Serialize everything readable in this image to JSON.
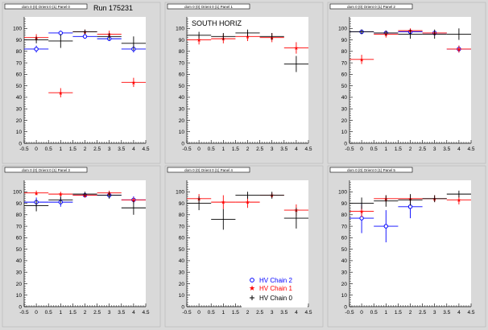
{
  "colors": {
    "series0": "#0000ff",
    "series1": "#ff0000",
    "series2": "#000000",
    "frame": "#d9d9d9",
    "plot": "#ffffff"
  },
  "run_label": "Run 175231",
  "legend": [
    "HV Chain 2",
    "HV Chain 1",
    "HV Chain 0"
  ],
  "chart_data": [
    {
      "type": "scatter",
      "title": "dom 0 (0) Orient 0 (1) Panel 0",
      "annotation": "Run 175231",
      "xlim": [
        -0.5,
        4.5
      ],
      "ylim": [
        0,
        110
      ],
      "xticks": [
        -0.5,
        0,
        0.5,
        1,
        1.5,
        2,
        2.5,
        3,
        3.5,
        4,
        4.5
      ],
      "yticks": [
        0,
        10,
        20,
        30,
        40,
        50,
        60,
        70,
        80,
        90,
        100
      ],
      "series": [
        {
          "color": "#0000ff",
          "marker": "circle",
          "points": [
            {
              "x": 0,
              "y": 82,
              "ex": 0.5,
              "ey": 3
            },
            {
              "x": 1,
              "y": 96,
              "ex": 0.5,
              "ey": 2
            },
            {
              "x": 2,
              "y": 93,
              "ex": 0.5,
              "ey": 2
            },
            {
              "x": 3,
              "y": 91,
              "ex": 0.5,
              "ey": 2
            },
            {
              "x": 4,
              "y": 82,
              "ex": 0.5,
              "ey": 3
            }
          ]
        },
        {
          "color": "#ff0000",
          "marker": "star",
          "points": [
            {
              "x": 0,
              "y": 92,
              "ex": 0.5,
              "ey": 3
            },
            {
              "x": 1,
              "y": 44,
              "ex": 0.5,
              "ey": 4
            },
            {
              "x": 2,
              "y": 97,
              "ex": 0.5,
              "ey": 2
            },
            {
              "x": 3,
              "y": 95,
              "ex": 0.5,
              "ey": 3
            },
            {
              "x": 4,
              "y": 53,
              "ex": 0.5,
              "ey": 4
            }
          ]
        },
        {
          "color": "#000000",
          "marker": "cross",
          "points": [
            {
              "x": 0,
              "y": 90,
              "ex": 0.5,
              "ey": 3
            },
            {
              "x": 1,
              "y": 89,
              "ex": 0.5,
              "ey": 6
            },
            {
              "x": 2,
              "y": 97,
              "ex": 0.5,
              "ey": 2
            },
            {
              "x": 3,
              "y": 93,
              "ex": 0.5,
              "ey": 3
            },
            {
              "x": 4,
              "y": 87,
              "ex": 0.5,
              "ey": 6
            }
          ]
        }
      ]
    },
    {
      "type": "scatter",
      "title": "dom 0 (0) Orient 0 (1) Panel 1",
      "annotation": "SOUTH HORIZ",
      "xlim": [
        -0.5,
        4.5
      ],
      "ylim": [
        0,
        110
      ],
      "xticks": [
        -0.5,
        0,
        0.5,
        1,
        1.5,
        2,
        2.5,
        3,
        3.5,
        4,
        4.5
      ],
      "yticks": [
        0,
        10,
        20,
        30,
        40,
        50,
        60,
        70,
        80,
        90,
        100
      ],
      "series": [
        {
          "color": "#ff0000",
          "marker": "star",
          "points": [
            {
              "x": 0,
              "y": 90,
              "ex": 0.5,
              "ey": 4
            },
            {
              "x": 1,
              "y": 91,
              "ex": 0.5,
              "ey": 4
            },
            {
              "x": 2,
              "y": 93,
              "ex": 0.5,
              "ey": 4
            },
            {
              "x": 3,
              "y": 92,
              "ex": 0.5,
              "ey": 4
            },
            {
              "x": 4,
              "y": 83,
              "ex": 0.5,
              "ey": 5
            }
          ]
        },
        {
          "color": "#000000",
          "marker": "cross",
          "points": [
            {
              "x": 0,
              "y": 94,
              "ex": 0.5,
              "ey": 3
            },
            {
              "x": 1,
              "y": 93,
              "ex": 0.5,
              "ey": 3
            },
            {
              "x": 2,
              "y": 96,
              "ex": 0.5,
              "ey": 3
            },
            {
              "x": 3,
              "y": 93,
              "ex": 0.5,
              "ey": 3
            },
            {
              "x": 4,
              "y": 69,
              "ex": 0.5,
              "ey": 7
            }
          ]
        }
      ]
    },
    {
      "type": "scatter",
      "title": "dom 0 (0) Orient 0 (1) Panel 2",
      "annotation": "",
      "xlim": [
        -0.5,
        4.5
      ],
      "ylim": [
        0,
        110
      ],
      "xticks": [
        -0.5,
        0,
        0.5,
        1,
        1.5,
        2,
        2.5,
        3,
        3.5,
        4,
        4.5
      ],
      "yticks": [
        0,
        10,
        20,
        30,
        40,
        50,
        60,
        70,
        80,
        90,
        100
      ],
      "series": [
        {
          "color": "#0000ff",
          "marker": "circle",
          "points": [
            {
              "x": 0,
              "y": 97,
              "ex": 0.5,
              "ey": 2
            },
            {
              "x": 1,
              "y": 96,
              "ex": 0.5,
              "ey": 2
            },
            {
              "x": 2,
              "y": 97,
              "ex": 0.5,
              "ey": 2
            },
            {
              "x": 3,
              "y": 96,
              "ex": 0.5,
              "ey": 2
            },
            {
              "x": 4,
              "y": 82,
              "ex": 0.5,
              "ey": 3
            }
          ]
        },
        {
          "color": "#ff0000",
          "marker": "star",
          "points": [
            {
              "x": 0,
              "y": 73,
              "ex": 0.5,
              "ey": 4
            },
            {
              "x": 1,
              "y": 95,
              "ex": 0.5,
              "ey": 3
            },
            {
              "x": 2,
              "y": 98,
              "ex": 0.5,
              "ey": 2
            },
            {
              "x": 3,
              "y": 96,
              "ex": 0.5,
              "ey": 2
            },
            {
              "x": 4,
              "y": 82,
              "ex": 0.5,
              "ey": 3
            }
          ]
        },
        {
          "color": "#000000",
          "marker": "cross",
          "points": [
            {
              "x": 0,
              "y": 97,
              "ex": 0.5,
              "ey": 2
            },
            {
              "x": 1,
              "y": 96,
              "ex": 0.5,
              "ey": 2
            },
            {
              "x": 2,
              "y": 95,
              "ex": 0.5,
              "ey": 4
            },
            {
              "x": 3,
              "y": 95,
              "ex": 0.5,
              "ey": 4
            },
            {
              "x": 4,
              "y": 95,
              "ex": 0.5,
              "ey": 5
            }
          ]
        }
      ]
    },
    {
      "type": "scatter",
      "title": "dom 0 (0) Orient 0 (1) Panel 3",
      "annotation": "",
      "xlim": [
        -0.5,
        4.5
      ],
      "ylim": [
        0,
        110
      ],
      "xticks": [
        -0.5,
        0,
        0.5,
        1,
        1.5,
        2,
        2.5,
        3,
        3.5,
        4,
        4.5
      ],
      "yticks": [
        0,
        10,
        20,
        30,
        40,
        50,
        60,
        70,
        80,
        90,
        100
      ],
      "series": [
        {
          "color": "#0000ff",
          "marker": "circle",
          "points": [
            {
              "x": 0,
              "y": 91,
              "ex": 0.5,
              "ey": 4
            },
            {
              "x": 1,
              "y": 91,
              "ex": 0.5,
              "ey": 4
            },
            {
              "x": 2,
              "y": 97,
              "ex": 0.5,
              "ey": 2
            },
            {
              "x": 3,
              "y": 97,
              "ex": 0.5,
              "ey": 2
            },
            {
              "x": 4,
              "y": 93,
              "ex": 0.5,
              "ey": 3
            }
          ]
        },
        {
          "color": "#ff0000",
          "marker": "star",
          "points": [
            {
              "x": 0,
              "y": 99,
              "ex": 0.5,
              "ey": 2
            },
            {
              "x": 1,
              "y": 98,
              "ex": 0.5,
              "ey": 2
            },
            {
              "x": 2,
              "y": 97,
              "ex": 0.5,
              "ey": 2
            },
            {
              "x": 3,
              "y": 99,
              "ex": 0.5,
              "ey": 2
            },
            {
              "x": 4,
              "y": 93,
              "ex": 0.5,
              "ey": 2
            }
          ]
        },
        {
          "color": "#000000",
          "marker": "cross",
          "points": [
            {
              "x": 0,
              "y": 88,
              "ex": 0.5,
              "ey": 5
            },
            {
              "x": 1,
              "y": 93,
              "ex": 0.5,
              "ey": 3
            },
            {
              "x": 2,
              "y": 98,
              "ex": 0.5,
              "ey": 2
            },
            {
              "x": 3,
              "y": 97,
              "ex": 0.5,
              "ey": 3
            },
            {
              "x": 4,
              "y": 86,
              "ex": 0.5,
              "ey": 6
            }
          ]
        }
      ]
    },
    {
      "type": "scatter",
      "title": "dom 0 (0) Orient 0 (1) Panel 4",
      "annotation": "",
      "xlim": [
        -0.5,
        4.5
      ],
      "ylim": [
        0,
        110
      ],
      "xticks": [
        -0.5,
        0,
        0.5,
        1,
        1.5,
        2,
        2.5,
        3,
        3.5,
        4,
        4.5
      ],
      "yticks": [
        0,
        10,
        20,
        30,
        40,
        50,
        60,
        70,
        80,
        90,
        100
      ],
      "series": [
        {
          "color": "#ff0000",
          "marker": "star",
          "points": [
            {
              "x": 0,
              "y": 94,
              "ex": 0.5,
              "ey": 4
            },
            {
              "x": 1,
              "y": 91,
              "ex": 0.5,
              "ey": 6
            },
            {
              "x": 2,
              "y": 91,
              "ex": 0.5,
              "ey": 5
            },
            {
              "x": 3,
              "y": 97,
              "ex": 0.5,
              "ey": 2
            },
            {
              "x": 4,
              "y": 84,
              "ex": 0.5,
              "ey": 5
            }
          ]
        },
        {
          "color": "#000000",
          "marker": "cross",
          "points": [
            {
              "x": 0,
              "y": 90,
              "ex": 0.5,
              "ey": 6
            },
            {
              "x": 1,
              "y": 76,
              "ex": 0.5,
              "ey": 9
            },
            {
              "x": 2,
              "y": 97,
              "ex": 0.5,
              "ey": 3
            },
            {
              "x": 3,
              "y": 97,
              "ex": 0.5,
              "ey": 3
            },
            {
              "x": 4,
              "y": 77,
              "ex": 0.5,
              "ey": 9
            }
          ]
        }
      ]
    },
    {
      "type": "scatter",
      "title": "dom 0 (0) Orient 0 (1) Panel 5",
      "annotation": "",
      "xlim": [
        -0.5,
        4.5
      ],
      "ylim": [
        0,
        110
      ],
      "xticks": [
        -0.5,
        0,
        0.5,
        1,
        1.5,
        2,
        2.5,
        3,
        3.5,
        4,
        4.5
      ],
      "yticks": [
        0,
        10,
        20,
        30,
        40,
        50,
        60,
        70,
        80,
        90,
        100
      ],
      "series": [
        {
          "color": "#0000ff",
          "marker": "circle",
          "points": [
            {
              "x": 0,
              "y": 77,
              "ex": 0.5,
              "ey": 13
            },
            {
              "x": 1,
              "y": 70,
              "ex": 0.5,
              "ey": 14
            },
            {
              "x": 2,
              "y": 87,
              "ex": 0.5,
              "ey": 10
            }
          ]
        },
        {
          "color": "#ff0000",
          "marker": "star",
          "points": [
            {
              "x": 0,
              "y": 83,
              "ex": 0.5,
              "ey": 5
            },
            {
              "x": 1,
              "y": 94,
              "ex": 0.5,
              "ey": 3
            },
            {
              "x": 2,
              "y": 94,
              "ex": 0.5,
              "ey": 3
            },
            {
              "x": 3,
              "y": 94,
              "ex": 0.5,
              "ey": 3
            },
            {
              "x": 4,
              "y": 93,
              "ex": 0.5,
              "ey": 4
            }
          ]
        },
        {
          "color": "#000000",
          "marker": "cross",
          "points": [
            {
              "x": 0,
              "y": 90,
              "ex": 0.5,
              "ey": 5
            },
            {
              "x": 1,
              "y": 92,
              "ex": 0.5,
              "ey": 5
            },
            {
              "x": 2,
              "y": 93,
              "ex": 0.5,
              "ey": 5
            },
            {
              "x": 3,
              "y": 94,
              "ex": 0.5,
              "ey": 3
            },
            {
              "x": 4,
              "y": 98,
              "ex": 0.5,
              "ey": 3
            }
          ]
        }
      ]
    }
  ]
}
